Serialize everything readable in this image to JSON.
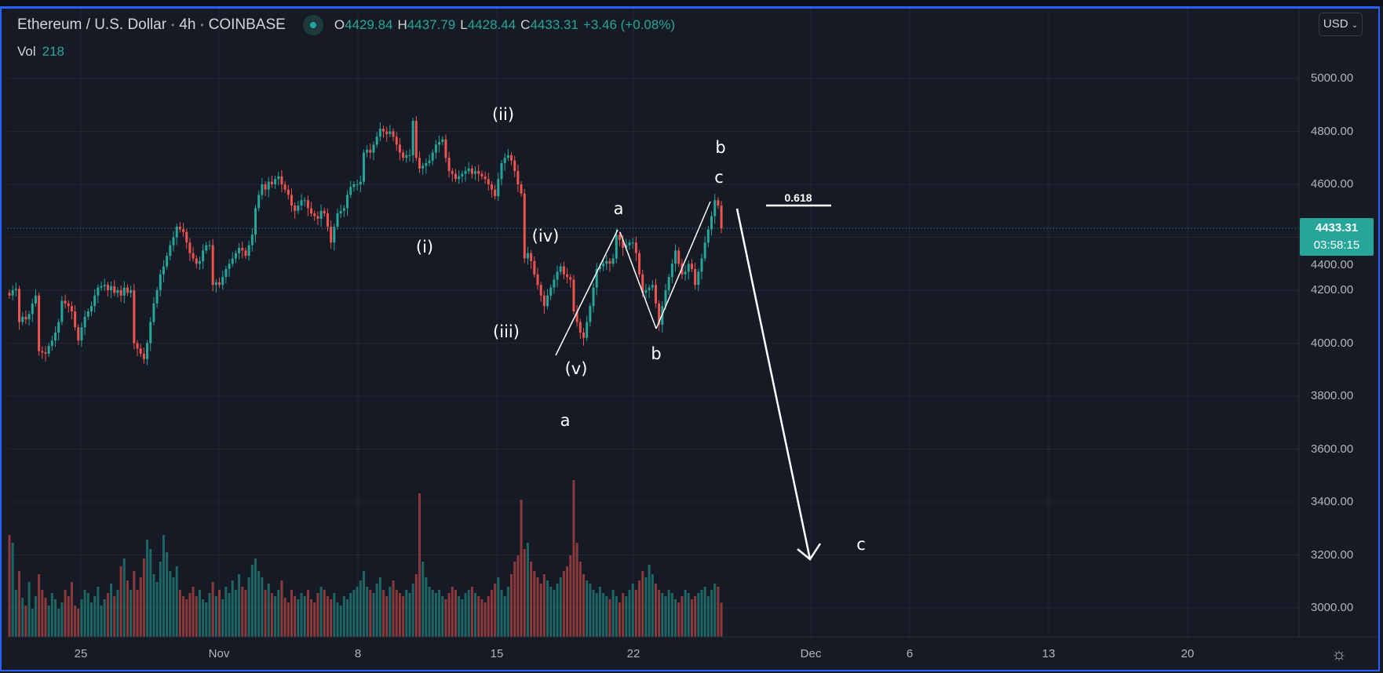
{
  "header": {
    "symbol": "Ethereum / U.S. Dollar",
    "interval": "4h",
    "exchange": "COINBASE",
    "status": "market-open-dot",
    "o_label": "O",
    "o": "4429.84",
    "h_label": "H",
    "h": "4437.79",
    "l_label": "L",
    "l": "4428.44",
    "c_label": "C",
    "c": "4433.31",
    "change": "+3.46 (+0.08%)",
    "vol_label": "Vol",
    "vol": "218"
  },
  "currency_button": "USD",
  "price_label": {
    "price": "4433.31",
    "countdown": "03:58:15"
  },
  "annotations": {
    "ii": "(ii)",
    "i": "(i)",
    "iv": "(iv)",
    "iii": "(iii)",
    "v": "(v)",
    "a1": "a",
    "b1": "b",
    "b2": "b",
    "c1": "c",
    "a2": "a",
    "c2": "c",
    "fib": "0.618"
  },
  "colors": {
    "up": "#26a69a",
    "down": "#ef5350",
    "background": "#161a25",
    "grid": "#232732",
    "frame": "#2962ff"
  },
  "settings_icon": "gear-icon",
  "chart_data": {
    "type": "candlestick",
    "interval": "4h",
    "ylim": [
      2900,
      5060
    ],
    "grid": true,
    "y_ticks": [
      "5000.00",
      "4800.00",
      "4600.00",
      "4400.00",
      "4200.00",
      "4000.00",
      "3800.00",
      "3600.00",
      "3400.00",
      "3200.00",
      "3000.00"
    ],
    "y_tick_values": [
      5000,
      4800,
      4600,
      4400,
      4200,
      4000,
      3800,
      3600,
      3400,
      3200,
      3000
    ],
    "x_ticks": [
      "25",
      "Nov",
      "8",
      "15",
      "22",
      "Dec",
      "6",
      "13",
      "20"
    ],
    "last_close": 4433.31,
    "closes": [
      4180,
      4200,
      4205,
      4080,
      4100,
      4090,
      4110,
      4150,
      4180,
      3970,
      3965,
      3960,
      3990,
      4010,
      4040,
      4080,
      4160,
      4150,
      4140,
      4120,
      4060,
      4010,
      4060,
      4100,
      4120,
      4140,
      4180,
      4210,
      4215,
      4220,
      4200,
      4215,
      4190,
      4200,
      4180,
      4210,
      4190,
      4200,
      4000,
      3980,
      3960,
      3940,
      4000,
      4080,
      4150,
      4200,
      4260,
      4290,
      4330,
      4370,
      4400,
      4440,
      4430,
      4420,
      4380,
      4340,
      4320,
      4300,
      4310,
      4350,
      4370,
      4370,
      4220,
      4230,
      4220,
      4250,
      4280,
      4300,
      4320,
      4340,
      4360,
      4350,
      4330,
      4370,
      4410,
      4510,
      4560,
      4600,
      4580,
      4610,
      4600,
      4620,
      4630,
      4600,
      4580,
      4560,
      4520,
      4500,
      4520,
      4540,
      4540,
      4510,
      4490,
      4480,
      4470,
      4500,
      4490,
      4440,
      4380,
      4440,
      4490,
      4500,
      4510,
      4560,
      4590,
      4600,
      4600,
      4610,
      4720,
      4730,
      4720,
      4750,
      4780,
      4810,
      4800,
      4790,
      4800,
      4780,
      4750,
      4720,
      4700,
      4710,
      4710,
      4840,
      4700,
      4660,
      4670,
      4680,
      4690,
      4720,
      4750,
      4760,
      4770,
      4700,
      4650,
      4640,
      4620,
      4630,
      4640,
      4650,
      4660,
      4640,
      4650,
      4640,
      4630,
      4620,
      4600,
      4580,
      4555,
      4620,
      4680,
      4700,
      4710,
      4690,
      4650,
      4600,
      4565,
      4320,
      4340,
      4310,
      4260,
      4220,
      4180,
      4140,
      4180,
      4210,
      4240,
      4270,
      4290,
      4260,
      4250,
      4240,
      4120,
      4080,
      4040,
      4020,
      4080,
      4140,
      4210,
      4280,
      4290,
      4300,
      4310,
      4300,
      4320,
      4410,
      4390,
      4360,
      4370,
      4380,
      4380,
      4340,
      4260,
      4190,
      4200,
      4210,
      4220,
      4150,
      4070,
      4140,
      4200,
      4250,
      4300,
      4350,
      4300,
      4260,
      4270,
      4300,
      4280,
      4220,
      4270,
      4320,
      4380,
      4430,
      4480,
      4540,
      4520,
      4433.31
    ],
    "volumes": [
      650,
      600,
      300,
      420,
      250,
      200,
      350,
      180,
      260,
      400,
      300,
      250,
      200,
      280,
      240,
      180,
      220,
      300,
      260,
      350,
      200,
      180,
      240,
      300,
      280,
      220,
      260,
      320,
      200,
      240,
      280,
      340,
      260,
      300,
      450,
      500,
      360,
      300,
      420,
      300,
      380,
      500,
      620,
      560,
      400,
      350,
      480,
      650,
      540,
      420,
      380,
      450,
      300,
      260,
      240,
      280,
      320,
      260,
      300,
      240,
      220,
      280,
      350,
      260,
      300,
      240,
      320,
      280,
      360,
      300,
      400,
      320,
      300,
      380,
      460,
      500,
      420,
      380,
      300,
      340,
      280,
      260,
      300,
      360,
      250,
      220,
      300,
      260,
      240,
      280,
      260,
      300,
      240,
      220,
      280,
      320,
      300,
      260,
      240,
      280,
      220,
      200,
      260,
      240,
      280,
      300,
      320,
      360,
      420,
      320,
      300,
      280,
      340,
      380,
      300,
      260,
      320,
      360,
      300,
      280,
      260,
      300,
      280,
      340,
      400,
      915,
      480,
      380,
      320,
      300,
      280,
      300,
      260,
      240,
      280,
      320,
      300,
      260,
      240,
      280,
      300,
      320,
      280,
      260,
      240,
      220,
      260,
      300,
      340,
      380,
      300,
      260,
      320,
      400,
      480,
      520,
      875,
      560,
      600,
      480,
      420,
      380,
      340,
      400,
      360,
      320,
      300,
      340,
      380,
      420,
      450,
      520,
      1000,
      600,
      480,
      400,
      360,
      340,
      300,
      280,
      320,
      280,
      260,
      240,
      300,
      260,
      220,
      280,
      260,
      300,
      340,
      300,
      360,
      420,
      380,
      460,
      400,
      340,
      300,
      280,
      260,
      300,
      280,
      240,
      220,
      260,
      300,
      280,
      240,
      260,
      280,
      300,
      320,
      260,
      300,
      340,
      320,
      218
    ]
  }
}
